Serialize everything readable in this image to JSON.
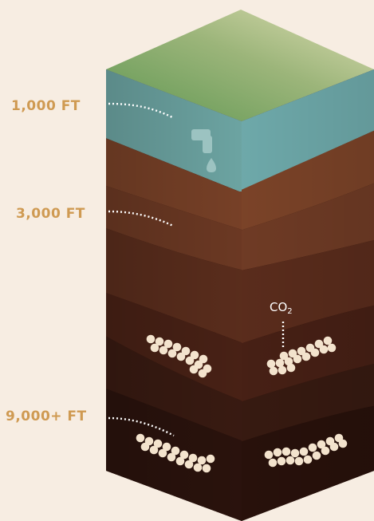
{
  "labels": {
    "depth_1000": "1,000 FT",
    "depth_3000": "3,000 FT",
    "depth_9000": "9,000+ FT",
    "co2_main": "CO",
    "co2_sub": "2"
  },
  "icons": {
    "water": "faucet-icon"
  },
  "colors": {
    "background": "#f7ede2",
    "label": "#cf9a52",
    "grass_light": "#d8dcae",
    "grass_dark": "#6f9a56",
    "aquifer": "#6fa8a6",
    "soil_top": "#7a4228",
    "soil_bottom": "#2e140e",
    "co2_bubble": "#f4e4cf"
  }
}
